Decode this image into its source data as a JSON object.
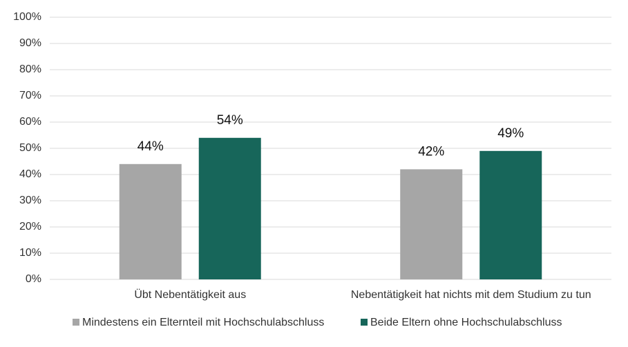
{
  "chart_data": {
    "type": "bar",
    "categories": [
      "Übt Nebentätigkeit aus",
      "Nebentätigkeit hat nichts mit dem Studium zu tun"
    ],
    "series": [
      {
        "name": "Mindestens ein Elternteil mit Hochschulabschluss",
        "color": "#a6a6a6",
        "values": [
          44,
          42
        ],
        "value_labels": [
          "44%",
          "42%"
        ]
      },
      {
        "name": "Beide Eltern ohne Hochschulabschluss",
        "color": "#17665a",
        "values": [
          54,
          49
        ],
        "value_labels": [
          "54%",
          "49%"
        ]
      }
    ],
    "ylim": [
      0,
      100
    ],
    "yticks": [
      {
        "value": 0,
        "label": "0%"
      },
      {
        "value": 10,
        "label": "10%"
      },
      {
        "value": 20,
        "label": "20%"
      },
      {
        "value": 30,
        "label": "30%"
      },
      {
        "value": 40,
        "label": "40%"
      },
      {
        "value": 50,
        "label": "50%"
      },
      {
        "value": 60,
        "label": "60%"
      },
      {
        "value": 70,
        "label": "70%"
      },
      {
        "value": 80,
        "label": "80%"
      },
      {
        "value": 90,
        "label": "90%"
      },
      {
        "value": 100,
        "label": "100%"
      }
    ],
    "grid": true,
    "legend": "bottom"
  }
}
